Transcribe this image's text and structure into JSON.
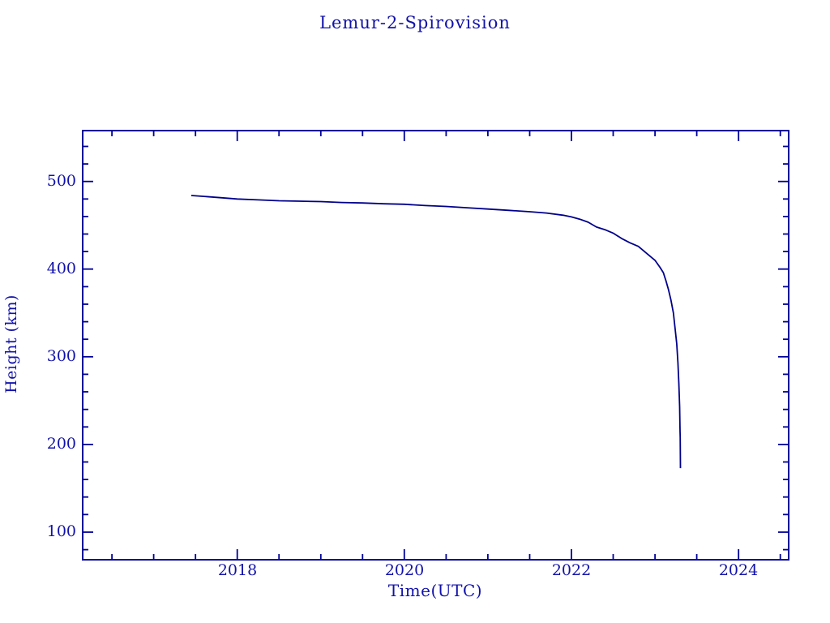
{
  "chart_data": {
    "type": "line",
    "title": "Lemur-2-Spirovision",
    "xlabel": "Time(UTC)",
    "ylabel": "Height (km)",
    "xlim": [
      2016.15,
      2024.6
    ],
    "ylim": [
      68.5,
      558
    ],
    "grid": false,
    "legend": "none",
    "colors": {
      "line": "#00008b",
      "axis": "#000099",
      "text": "#1212aa",
      "background": "#ffffff"
    },
    "x_major_ticks": [
      2018,
      2020,
      2022,
      2024
    ],
    "x_major_labels": [
      "2018",
      "2020",
      "2022",
      "2024"
    ],
    "x_minor_ticks": [
      2016.5,
      2017,
      2017.5,
      2018.5,
      2019,
      2019.5,
      2020.5,
      2021,
      2021.5,
      2022.5,
      2023,
      2023.5,
      2024.5
    ],
    "y_major_ticks": [
      100,
      200,
      300,
      400,
      500
    ],
    "y_major_labels": [
      "100",
      "200",
      "300",
      "400",
      "500"
    ],
    "y_minor_ticks": [
      80,
      120,
      140,
      160,
      180,
      220,
      240,
      260,
      280,
      320,
      340,
      360,
      380,
      420,
      440,
      460,
      480,
      520,
      540
    ],
    "series": [
      {
        "name": "Lemur-2-Spirovision",
        "points": [
          [
            2017.45,
            484
          ],
          [
            2017.6,
            483
          ],
          [
            2017.8,
            481.5
          ],
          [
            2018.0,
            480
          ],
          [
            2018.25,
            479
          ],
          [
            2018.5,
            478
          ],
          [
            2018.75,
            477.5
          ],
          [
            2019.0,
            477
          ],
          [
            2019.25,
            476
          ],
          [
            2019.5,
            475.5
          ],
          [
            2019.75,
            474.5
          ],
          [
            2020.0,
            474
          ],
          [
            2020.25,
            472.5
          ],
          [
            2020.5,
            471.5
          ],
          [
            2020.75,
            470
          ],
          [
            2021.0,
            468.5
          ],
          [
            2021.25,
            467
          ],
          [
            2021.5,
            465.5
          ],
          [
            2021.7,
            464
          ],
          [
            2021.9,
            461.5
          ],
          [
            2022.0,
            459.5
          ],
          [
            2022.1,
            457
          ],
          [
            2022.2,
            453.5
          ],
          [
            2022.3,
            448
          ],
          [
            2022.4,
            445
          ],
          [
            2022.5,
            441
          ],
          [
            2022.6,
            435
          ],
          [
            2022.7,
            430
          ],
          [
            2022.8,
            426
          ],
          [
            2022.9,
            418
          ],
          [
            2023.0,
            410
          ],
          [
            2023.06,
            402
          ],
          [
            2023.1,
            396
          ],
          [
            2023.13,
            387
          ],
          [
            2023.16,
            377
          ],
          [
            2023.19,
            365
          ],
          [
            2023.22,
            350
          ],
          [
            2023.24,
            333
          ],
          [
            2023.26,
            315
          ],
          [
            2023.275,
            293
          ],
          [
            2023.285,
            270
          ],
          [
            2023.295,
            243
          ],
          [
            2023.3,
            215
          ],
          [
            2023.302,
            208
          ],
          [
            2023.305,
            173
          ]
        ]
      }
    ]
  }
}
